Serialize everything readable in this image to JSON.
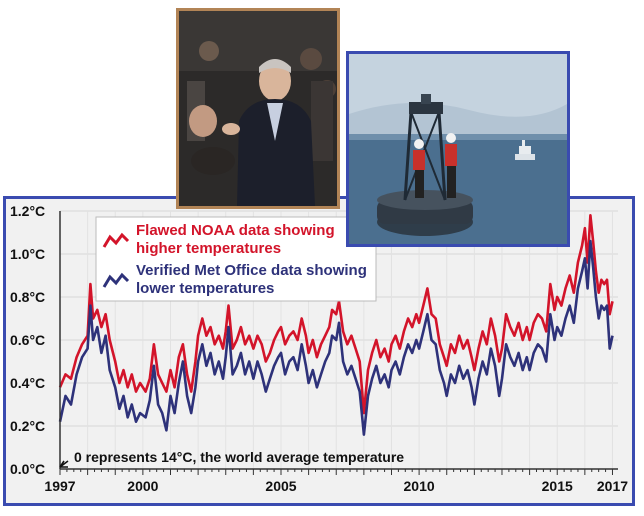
{
  "photos": {
    "left": {
      "icon": "speaker-photo"
    },
    "right": {
      "icon": "ocean-buoy-photo"
    }
  },
  "chart_data": {
    "type": "line",
    "xlim": [
      1997,
      2017.2
    ],
    "ylim": [
      0,
      1.2
    ],
    "x_ticks": [
      1997,
      2000,
      2005,
      2010,
      2015,
      2017
    ],
    "x_tick_labels": [
      "1997",
      "2000",
      "2005",
      "2010",
      "2015",
      "2017"
    ],
    "y_ticks": [
      0.0,
      0.2,
      0.4,
      0.6,
      0.8,
      1.0,
      1.2
    ],
    "y_tick_labels": [
      "0.0°C",
      "0.2°C",
      "0.4°C",
      "0.6°C",
      "0.8°C",
      "1.0°C",
      "1.2°C"
    ],
    "grid": true,
    "legend_position": "top-left",
    "annotation": "0 represents 14°C, the world average temperature",
    "series": [
      {
        "name": "Flawed NOAA data showing higher temperatures",
        "color": "#d3142a",
        "points": [
          [
            1997.0,
            0.38
          ],
          [
            1997.2,
            0.44
          ],
          [
            1997.4,
            0.42
          ],
          [
            1997.6,
            0.52
          ],
          [
            1997.8,
            0.58
          ],
          [
            1998.0,
            0.62
          ],
          [
            1998.1,
            0.86
          ],
          [
            1998.2,
            0.7
          ],
          [
            1998.35,
            0.74
          ],
          [
            1998.5,
            0.66
          ],
          [
            1998.65,
            0.72
          ],
          [
            1998.8,
            0.6
          ],
          [
            1999.0,
            0.5
          ],
          [
            1999.15,
            0.4
          ],
          [
            1999.3,
            0.46
          ],
          [
            1999.45,
            0.38
          ],
          [
            1999.6,
            0.44
          ],
          [
            1999.75,
            0.36
          ],
          [
            1999.9,
            0.4
          ],
          [
            2000.1,
            0.36
          ],
          [
            2000.25,
            0.42
          ],
          [
            2000.4,
            0.58
          ],
          [
            2000.55,
            0.44
          ],
          [
            2000.7,
            0.4
          ],
          [
            2000.85,
            0.36
          ],
          [
            2001.0,
            0.46
          ],
          [
            2001.15,
            0.38
          ],
          [
            2001.3,
            0.52
          ],
          [
            2001.45,
            0.58
          ],
          [
            2001.6,
            0.44
          ],
          [
            2001.75,
            0.36
          ],
          [
            2001.9,
            0.5
          ],
          [
            2002.0,
            0.62
          ],
          [
            2002.15,
            0.7
          ],
          [
            2002.3,
            0.62
          ],
          [
            2002.45,
            0.66
          ],
          [
            2002.6,
            0.58
          ],
          [
            2002.75,
            0.62
          ],
          [
            2002.9,
            0.56
          ],
          [
            2003.0,
            0.64
          ],
          [
            2003.1,
            0.76
          ],
          [
            2003.25,
            0.56
          ],
          [
            2003.4,
            0.6
          ],
          [
            2003.55,
            0.66
          ],
          [
            2003.7,
            0.58
          ],
          [
            2003.85,
            0.62
          ],
          [
            2004.0,
            0.56
          ],
          [
            2004.15,
            0.62
          ],
          [
            2004.3,
            0.58
          ],
          [
            2004.45,
            0.5
          ],
          [
            2004.6,
            0.54
          ],
          [
            2004.75,
            0.6
          ],
          [
            2004.9,
            0.64
          ],
          [
            2005.0,
            0.66
          ],
          [
            2005.15,
            0.58
          ],
          [
            2005.3,
            0.62
          ],
          [
            2005.45,
            0.64
          ],
          [
            2005.6,
            0.6
          ],
          [
            2005.75,
            0.7
          ],
          [
            2005.9,
            0.62
          ],
          [
            2006.0,
            0.54
          ],
          [
            2006.15,
            0.6
          ],
          [
            2006.3,
            0.52
          ],
          [
            2006.45,
            0.58
          ],
          [
            2006.6,
            0.62
          ],
          [
            2006.75,
            0.66
          ],
          [
            2006.85,
            0.74
          ],
          [
            2007.0,
            0.72
          ],
          [
            2007.1,
            0.78
          ],
          [
            2007.25,
            0.64
          ],
          [
            2007.4,
            0.58
          ],
          [
            2007.55,
            0.62
          ],
          [
            2007.7,
            0.56
          ],
          [
            2007.85,
            0.5
          ],
          [
            2008.0,
            0.26
          ],
          [
            2008.15,
            0.46
          ],
          [
            2008.3,
            0.54
          ],
          [
            2008.45,
            0.6
          ],
          [
            2008.6,
            0.52
          ],
          [
            2008.75,
            0.56
          ],
          [
            2008.9,
            0.5
          ],
          [
            2009.0,
            0.58
          ],
          [
            2009.15,
            0.62
          ],
          [
            2009.3,
            0.56
          ],
          [
            2009.45,
            0.64
          ],
          [
            2009.6,
            0.7
          ],
          [
            2009.75,
            0.66
          ],
          [
            2009.9,
            0.72
          ],
          [
            2010.0,
            0.68
          ],
          [
            2010.15,
            0.76
          ],
          [
            2010.3,
            0.84
          ],
          [
            2010.45,
            0.72
          ],
          [
            2010.6,
            0.7
          ],
          [
            2010.75,
            0.58
          ],
          [
            2010.9,
            0.52
          ],
          [
            2011.0,
            0.48
          ],
          [
            2011.15,
            0.58
          ],
          [
            2011.3,
            0.54
          ],
          [
            2011.45,
            0.62
          ],
          [
            2011.6,
            0.56
          ],
          [
            2011.75,
            0.6
          ],
          [
            2011.9,
            0.52
          ],
          [
            2012.0,
            0.46
          ],
          [
            2012.15,
            0.56
          ],
          [
            2012.3,
            0.64
          ],
          [
            2012.45,
            0.58
          ],
          [
            2012.6,
            0.7
          ],
          [
            2012.75,
            0.62
          ],
          [
            2012.9,
            0.5
          ],
          [
            2013.0,
            0.56
          ],
          [
            2013.15,
            0.72
          ],
          [
            2013.3,
            0.66
          ],
          [
            2013.45,
            0.62
          ],
          [
            2013.6,
            0.68
          ],
          [
            2013.75,
            0.6
          ],
          [
            2013.9,
            0.66
          ],
          [
            2014.0,
            0.6
          ],
          [
            2014.15,
            0.68
          ],
          [
            2014.3,
            0.72
          ],
          [
            2014.45,
            0.7
          ],
          [
            2014.6,
            0.64
          ],
          [
            2014.75,
            0.86
          ],
          [
            2014.9,
            0.74
          ],
          [
            2015.0,
            0.8
          ],
          [
            2015.15,
            0.76
          ],
          [
            2015.3,
            0.84
          ],
          [
            2015.45,
            0.9
          ],
          [
            2015.6,
            0.82
          ],
          [
            2015.75,
            0.96
          ],
          [
            2015.9,
            1.04
          ],
          [
            2016.0,
            1.12
          ],
          [
            2016.1,
            0.96
          ],
          [
            2016.2,
            1.18
          ],
          [
            2016.3,
            1.06
          ],
          [
            2016.4,
            0.92
          ],
          [
            2016.5,
            0.82
          ],
          [
            2016.6,
            0.88
          ],
          [
            2016.7,
            0.86
          ],
          [
            2016.8,
            0.88
          ],
          [
            2016.9,
            0.72
          ],
          [
            2017.0,
            0.78
          ]
        ]
      },
      {
        "name": "Verified Met Office data showing lower temperatures",
        "color": "#2e327a",
        "points": [
          [
            1997.0,
            0.22
          ],
          [
            1997.2,
            0.34
          ],
          [
            1997.4,
            0.3
          ],
          [
            1997.6,
            0.44
          ],
          [
            1997.8,
            0.52
          ],
          [
            1998.0,
            0.56
          ],
          [
            1998.1,
            0.76
          ],
          [
            1998.2,
            0.6
          ],
          [
            1998.35,
            0.66
          ],
          [
            1998.5,
            0.54
          ],
          [
            1998.65,
            0.62
          ],
          [
            1998.8,
            0.46
          ],
          [
            1999.0,
            0.38
          ],
          [
            1999.15,
            0.28
          ],
          [
            1999.3,
            0.34
          ],
          [
            1999.45,
            0.24
          ],
          [
            1999.6,
            0.3
          ],
          [
            1999.75,
            0.22
          ],
          [
            1999.9,
            0.26
          ],
          [
            2000.1,
            0.24
          ],
          [
            2000.25,
            0.32
          ],
          [
            2000.4,
            0.48
          ],
          [
            2000.55,
            0.3
          ],
          [
            2000.7,
            0.26
          ],
          [
            2000.85,
            0.18
          ],
          [
            2001.0,
            0.34
          ],
          [
            2001.15,
            0.26
          ],
          [
            2001.3,
            0.4
          ],
          [
            2001.45,
            0.5
          ],
          [
            2001.6,
            0.34
          ],
          [
            2001.75,
            0.26
          ],
          [
            2001.9,
            0.38
          ],
          [
            2002.0,
            0.5
          ],
          [
            2002.15,
            0.58
          ],
          [
            2002.3,
            0.48
          ],
          [
            2002.45,
            0.54
          ],
          [
            2002.6,
            0.44
          ],
          [
            2002.75,
            0.5
          ],
          [
            2002.9,
            0.42
          ],
          [
            2003.0,
            0.52
          ],
          [
            2003.1,
            0.66
          ],
          [
            2003.25,
            0.44
          ],
          [
            2003.4,
            0.48
          ],
          [
            2003.55,
            0.54
          ],
          [
            2003.7,
            0.44
          ],
          [
            2003.85,
            0.5
          ],
          [
            2004.0,
            0.42
          ],
          [
            2004.15,
            0.5
          ],
          [
            2004.3,
            0.44
          ],
          [
            2004.45,
            0.36
          ],
          [
            2004.6,
            0.42
          ],
          [
            2004.75,
            0.48
          ],
          [
            2004.9,
            0.52
          ],
          [
            2005.0,
            0.54
          ],
          [
            2005.15,
            0.44
          ],
          [
            2005.3,
            0.5
          ],
          [
            2005.45,
            0.52
          ],
          [
            2005.6,
            0.46
          ],
          [
            2005.75,
            0.58
          ],
          [
            2005.9,
            0.48
          ],
          [
            2006.0,
            0.4
          ],
          [
            2006.15,
            0.46
          ],
          [
            2006.3,
            0.38
          ],
          [
            2006.45,
            0.44
          ],
          [
            2006.6,
            0.5
          ],
          [
            2006.75,
            0.54
          ],
          [
            2006.85,
            0.62
          ],
          [
            2007.0,
            0.6
          ],
          [
            2007.1,
            0.68
          ],
          [
            2007.25,
            0.5
          ],
          [
            2007.4,
            0.44
          ],
          [
            2007.55,
            0.48
          ],
          [
            2007.7,
            0.42
          ],
          [
            2007.85,
            0.36
          ],
          [
            2008.0,
            0.16
          ],
          [
            2008.15,
            0.34
          ],
          [
            2008.3,
            0.42
          ],
          [
            2008.45,
            0.48
          ],
          [
            2008.6,
            0.4
          ],
          [
            2008.75,
            0.44
          ],
          [
            2008.9,
            0.38
          ],
          [
            2009.0,
            0.46
          ],
          [
            2009.15,
            0.5
          ],
          [
            2009.3,
            0.44
          ],
          [
            2009.45,
            0.52
          ],
          [
            2009.6,
            0.58
          ],
          [
            2009.75,
            0.54
          ],
          [
            2009.9,
            0.6
          ],
          [
            2010.0,
            0.56
          ],
          [
            2010.15,
            0.64
          ],
          [
            2010.3,
            0.72
          ],
          [
            2010.45,
            0.6
          ],
          [
            2010.6,
            0.58
          ],
          [
            2010.75,
            0.46
          ],
          [
            2010.9,
            0.4
          ],
          [
            2011.0,
            0.34
          ],
          [
            2011.15,
            0.44
          ],
          [
            2011.3,
            0.4
          ],
          [
            2011.45,
            0.48
          ],
          [
            2011.6,
            0.42
          ],
          [
            2011.75,
            0.46
          ],
          [
            2011.9,
            0.38
          ],
          [
            2012.0,
            0.3
          ],
          [
            2012.15,
            0.42
          ],
          [
            2012.3,
            0.5
          ],
          [
            2012.45,
            0.44
          ],
          [
            2012.6,
            0.56
          ],
          [
            2012.75,
            0.48
          ],
          [
            2012.9,
            0.34
          ],
          [
            2013.0,
            0.42
          ],
          [
            2013.15,
            0.58
          ],
          [
            2013.3,
            0.52
          ],
          [
            2013.45,
            0.48
          ],
          [
            2013.6,
            0.54
          ],
          [
            2013.75,
            0.46
          ],
          [
            2013.9,
            0.52
          ],
          [
            2014.0,
            0.46
          ],
          [
            2014.15,
            0.54
          ],
          [
            2014.3,
            0.58
          ],
          [
            2014.45,
            0.56
          ],
          [
            2014.6,
            0.5
          ],
          [
            2014.75,
            0.72
          ],
          [
            2014.9,
            0.6
          ],
          [
            2015.0,
            0.66
          ],
          [
            2015.15,
            0.62
          ],
          [
            2015.3,
            0.7
          ],
          [
            2015.45,
            0.76
          ],
          [
            2015.6,
            0.68
          ],
          [
            2015.75,
            0.84
          ],
          [
            2015.9,
            0.92
          ],
          [
            2016.0,
            0.98
          ],
          [
            2016.1,
            0.84
          ],
          [
            2016.2,
            1.06
          ],
          [
            2016.3,
            0.94
          ],
          [
            2016.4,
            0.8
          ],
          [
            2016.5,
            0.7
          ],
          [
            2016.6,
            0.76
          ],
          [
            2016.7,
            0.74
          ],
          [
            2016.8,
            0.76
          ],
          [
            2016.9,
            0.56
          ],
          [
            2017.0,
            0.62
          ]
        ]
      }
    ]
  }
}
